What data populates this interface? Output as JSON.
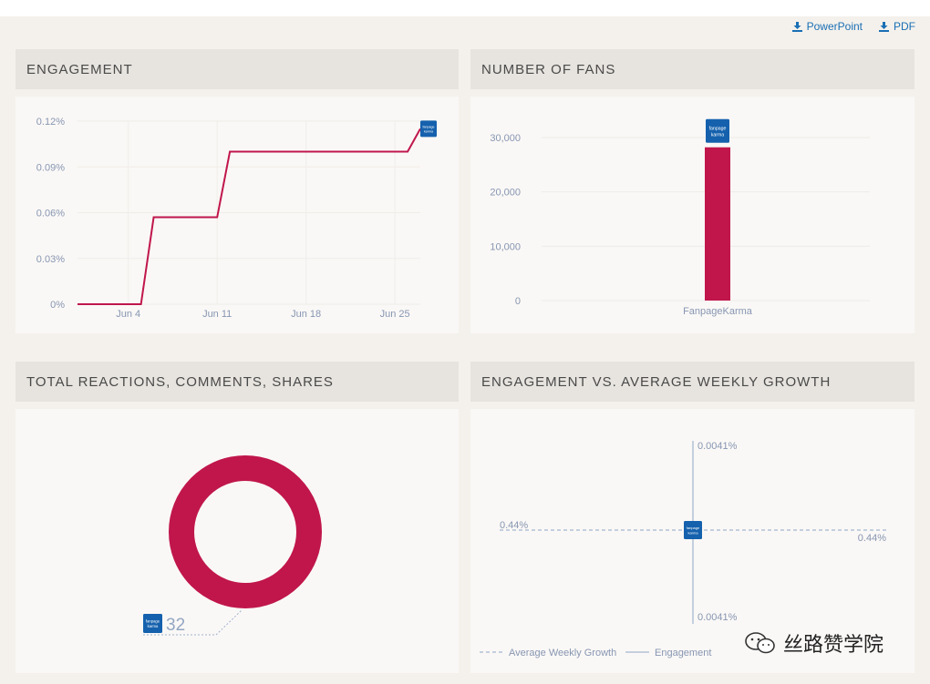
{
  "export": {
    "powerpoint_label": "PowerPoint",
    "pdf_label": "PDF"
  },
  "badge_text": [
    "fanpage",
    "karma"
  ],
  "colors": {
    "accent": "#c0164c",
    "axis_text": "#8796b2",
    "link": "#1a6fb5",
    "badge": "#1561ad"
  },
  "panels": {
    "engagement": {
      "title": "ENGAGEMENT"
    },
    "fans": {
      "title": "NUMBER OF FANS"
    },
    "reactions": {
      "title": "TOTAL REACTIONS, COMMENTS, SHARES"
    },
    "growth": {
      "title": "ENGAGEMENT VS. AVERAGE WEEKLY GROWTH"
    }
  },
  "watermark": {
    "text": "丝路赞学院",
    "icon": "wechat-icon"
  },
  "chart_data": [
    {
      "type": "line",
      "title": "ENGAGEMENT",
      "x": [
        "2024-05-31",
        "2024-06-05",
        "2024-06-06",
        "2024-06-11",
        "2024-06-12",
        "2024-06-26",
        "2024-06-27"
      ],
      "x_ticks": [
        "Jun 4",
        "Jun 11",
        "Jun 18",
        "Jun 25"
      ],
      "x_tick_dates": [
        "2024-06-04",
        "2024-06-11",
        "2024-06-18",
        "2024-06-25"
      ],
      "xlim": [
        "2024-05-31",
        "2024-06-27"
      ],
      "series": [
        {
          "values": [
            0,
            0,
            0.057,
            0.057,
            0.1,
            0.1,
            0.115
          ]
        }
      ],
      "y_ticks": [
        "0.12%",
        "0.09%",
        "0.06%",
        "0.03%",
        "0%"
      ],
      "y_tick_values": [
        0.12,
        0.09,
        0.06,
        0.03,
        0
      ],
      "ylim": [
        0,
        0.12
      ],
      "grid": true
    },
    {
      "type": "bar",
      "title": "NUMBER OF FANS",
      "categories": [
        "FanpageKarma"
      ],
      "values": [
        28200
      ],
      "y_ticks": [
        "30,000",
        "20,000",
        "10,000",
        "0"
      ],
      "y_tick_values": [
        30000,
        20000,
        10000,
        0
      ],
      "ylim": [
        0,
        30000
      ],
      "grid": true
    },
    {
      "type": "pie",
      "title": "TOTAL REACTIONS, COMMENTS, SHARES",
      "categories": [
        "FanpageKarma"
      ],
      "values": [
        32
      ],
      "value_label": "32"
    },
    {
      "type": "scatter",
      "title": "ENGAGEMENT VS. AVERAGE WEEKLY GROWTH",
      "x": [
        0.44
      ],
      "y": [
        0.0041
      ],
      "x_labels": [
        "0.44%",
        "0.44%"
      ],
      "y_labels": [
        "0.0041%",
        "0.0041%"
      ],
      "legend": [
        "Average Weekly Growth",
        "Engagement"
      ],
      "legend_position": "bottom-left"
    }
  ]
}
